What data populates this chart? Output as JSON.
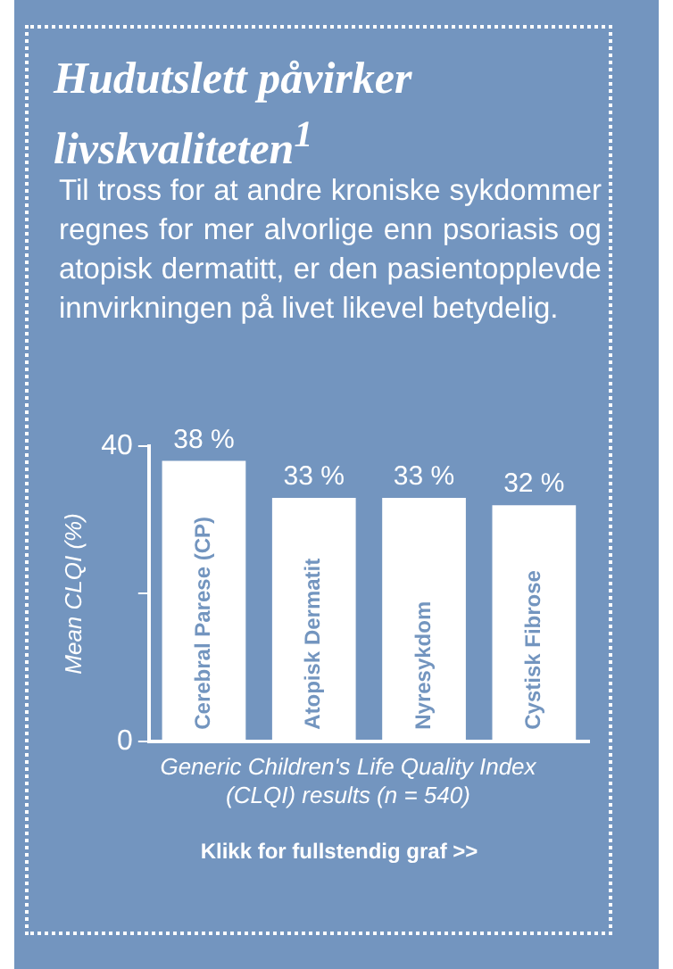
{
  "chart_data": {
    "type": "bar",
    "title": "Hudutslett påvirker livskvaliteten$^{1}$",
    "subtitle": "Til tross for at andre kroniske sykdommer regnes for mer alvorlige enn psoriasis og atopisk dermatitt, er den pasientopplevde innvirkningen på livet likevel betydelig.",
    "categories": [
      "Cerebral Parese (CP)",
      "Atopisk Dermatit",
      "Nyresykdom",
      "Cystisk Fibrose"
    ],
    "values": [
      38,
      33,
      33,
      32
    ],
    "value_labels": [
      "38 %",
      "33 %",
      "33 %",
      "32 %"
    ],
    "color": "#ffffff",
    "ylim": [
      0,
      40
    ],
    "yticks": [
      0,
      {
        "value": 20,
        "label": null
      },
      40
    ],
    "ylabel": "Mean CLQI (%)",
    "xlabel": "Generic Children's Life Quality Index (CLQI) results (n = 540)",
    "annotations": [
      "Klikk for fullstendig graf >>"
    ],
    "grid": false,
    "legend": false
  }
}
